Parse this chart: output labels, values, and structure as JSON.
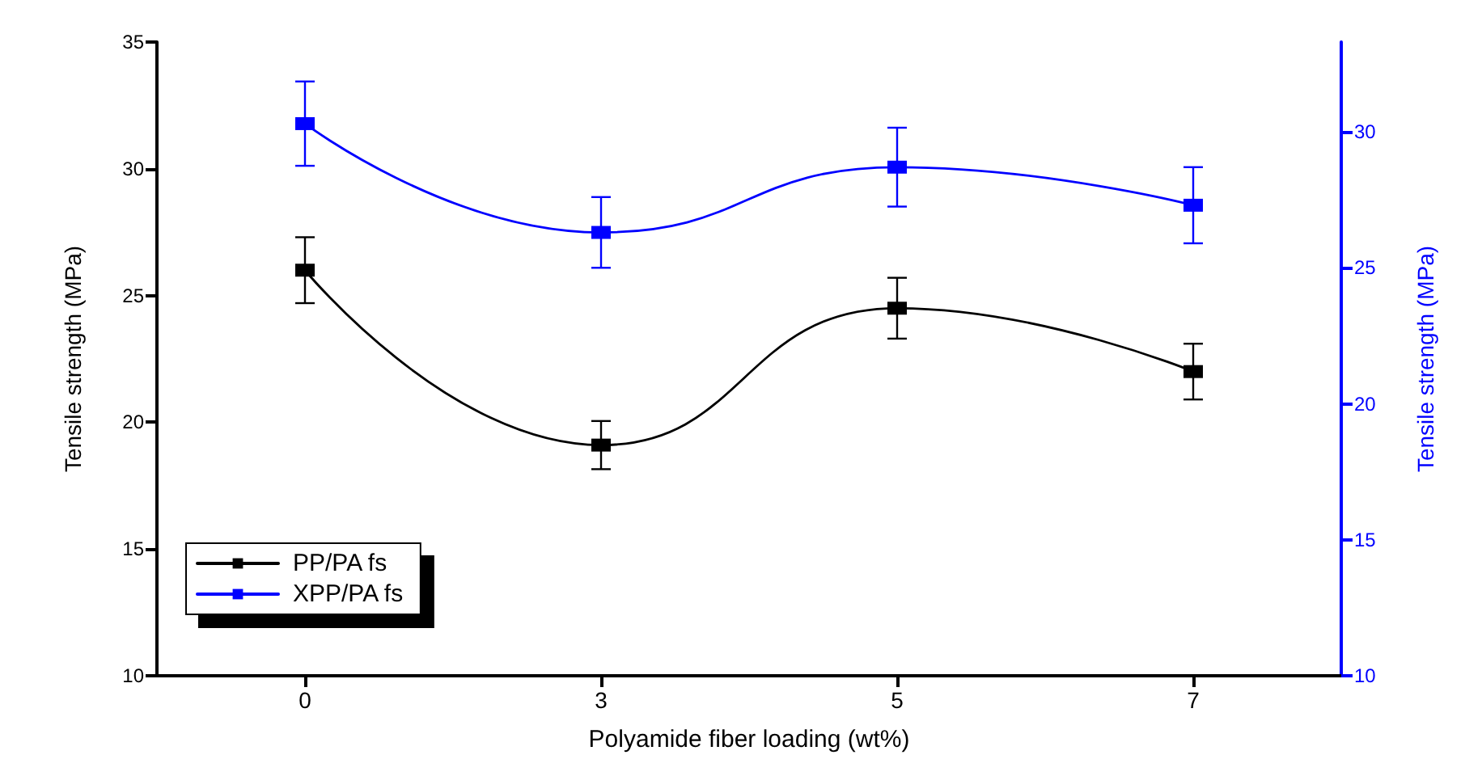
{
  "chart_data": {
    "type": "line",
    "xlabel": "Polyamide fiber loading (wt%)",
    "ylabel": "Tensile strength (MPa)",
    "y2label": "Tensile strength (MPa)",
    "categories": [
      "0",
      "3",
      "5",
      "7"
    ],
    "series": [
      {
        "name": "PP/PA fs",
        "color": "#000000",
        "values": [
          26.0,
          19.1,
          24.5,
          22.0
        ],
        "errors": [
          1.3,
          0.95,
          1.2,
          1.1
        ]
      },
      {
        "name": "XPP/PA fs",
        "color": "#0000ff",
        "axis": "y2",
        "values": [
          30.3,
          26.3,
          28.7,
          27.3
        ],
        "errors": [
          1.55,
          1.3,
          1.45,
          1.4
        ]
      }
    ],
    "ylim": [
      10,
      35
    ],
    "yticks": [
      10,
      15,
      20,
      25,
      30,
      35
    ],
    "y2lim": [
      10,
      33.3
    ],
    "y2ticks": [
      10,
      15,
      20,
      25,
      30
    ],
    "marker": "square",
    "line_style": "solid",
    "grid": false,
    "legend": "bottom left"
  }
}
